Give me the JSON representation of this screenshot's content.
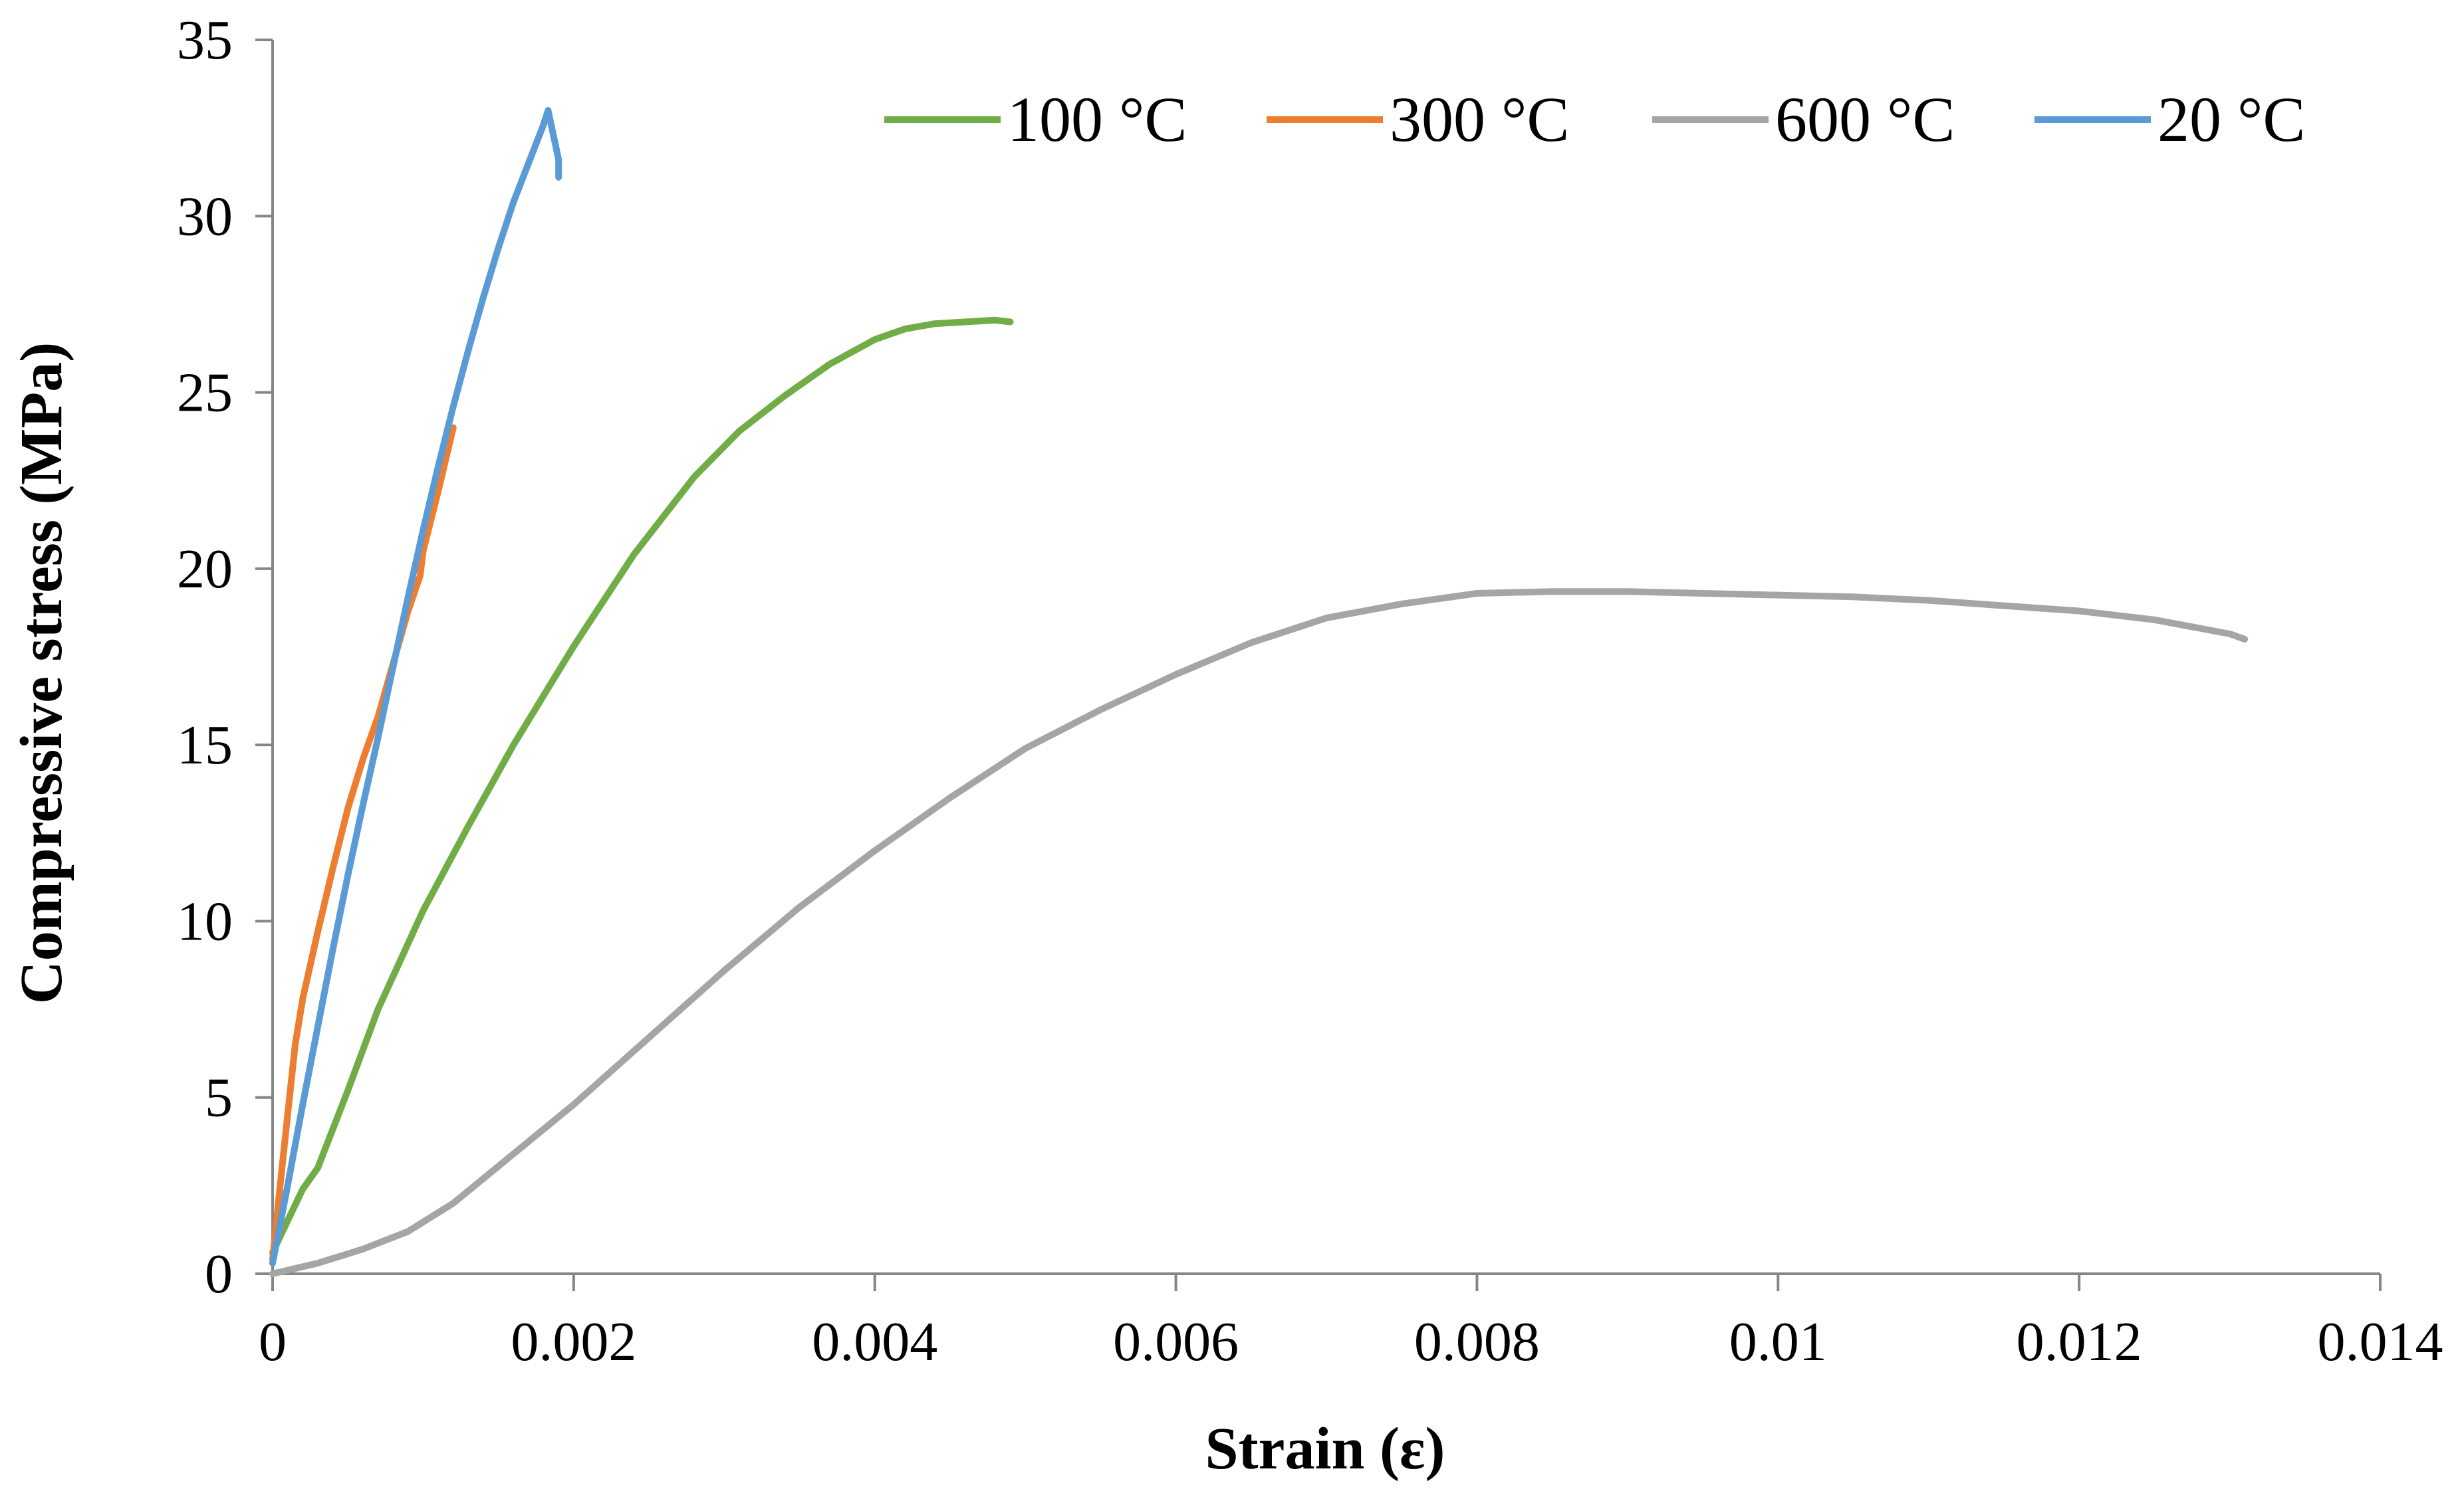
{
  "chart_data": {
    "type": "line",
    "title": "",
    "xlabel": "Strain (ε)",
    "ylabel": "Compressive stress (MPa)",
    "xlim": [
      0,
      0.014
    ],
    "ylim": [
      0,
      35
    ],
    "xticks": [
      0,
      0.002,
      0.004,
      0.006,
      0.008,
      0.01,
      0.012,
      0.014
    ],
    "xtick_labels": [
      "0",
      "0.002",
      "0.004",
      "0.006",
      "0.008",
      "0.01",
      "0.012",
      "0.014"
    ],
    "yticks": [
      0,
      5,
      10,
      15,
      20,
      25,
      30,
      35
    ],
    "ytick_labels": [
      "0",
      "5",
      "10",
      "15",
      "20",
      "25",
      "30",
      "35"
    ],
    "grid": false,
    "legend_position": "top-right",
    "series": [
      {
        "name": "100 °C",
        "color": "#70ad47",
        "x": [
          0,
          0.0001,
          0.0002,
          0.0003,
          0.0005,
          0.0007,
          0.001,
          0.0013,
          0.0016,
          0.002,
          0.0024,
          0.0028,
          0.0031,
          0.0034,
          0.0037,
          0.004,
          0.0042,
          0.0044,
          0.0046,
          0.0048,
          0.0049
        ],
        "y": [
          0.6,
          1.5,
          2.4,
          3.0,
          5.2,
          7.5,
          10.3,
          12.7,
          15.0,
          17.8,
          20.4,
          22.6,
          23.9,
          24.9,
          25.8,
          26.5,
          26.8,
          26.95,
          27.0,
          27.05,
          27.0
        ]
      },
      {
        "name": "300 °C",
        "color": "#ed7d31",
        "x": [
          0,
          5e-05,
          0.0001,
          0.00015,
          0.0002,
          0.0003,
          0.0004,
          0.0005,
          0.0006,
          0.0007,
          0.0008,
          0.0009,
          0.00098,
          0.001,
          0.0011,
          0.0012
        ],
        "y": [
          0.4,
          2.5,
          4.5,
          6.5,
          7.8,
          9.7,
          11.5,
          13.2,
          14.6,
          15.8,
          17.3,
          18.8,
          19.8,
          20.5,
          22.2,
          24.0
        ]
      },
      {
        "name": "600 °C",
        "color": "#a5a5a5",
        "x": [
          0,
          0.0003,
          0.0006,
          0.0009,
          0.0012,
          0.0016,
          0.002,
          0.0025,
          0.003,
          0.0035,
          0.004,
          0.0045,
          0.005,
          0.0055,
          0.006,
          0.0065,
          0.007,
          0.0075,
          0.008,
          0.0085,
          0.009,
          0.0095,
          0.01,
          0.0105,
          0.011,
          0.0115,
          0.012,
          0.0125,
          0.013,
          0.0131
        ],
        "y": [
          0,
          0.3,
          0.7,
          1.2,
          2.0,
          3.4,
          4.8,
          6.7,
          8.6,
          10.4,
          12.0,
          13.5,
          14.9,
          16.0,
          17.0,
          17.9,
          18.6,
          19.0,
          19.3,
          19.35,
          19.35,
          19.3,
          19.25,
          19.2,
          19.1,
          18.95,
          18.8,
          18.55,
          18.15,
          18.0
        ]
      },
      {
        "name": "20 °C",
        "color": "#5b9bd5",
        "x": [
          0,
          0.0001,
          0.0002,
          0.0003,
          0.0004,
          0.0005,
          0.0006,
          0.0007,
          0.0008,
          0.0009,
          0.001,
          0.0011,
          0.0012,
          0.0013,
          0.0014,
          0.0015,
          0.0016,
          0.0017,
          0.0018,
          0.00183,
          0.00185,
          0.00188,
          0.0019,
          0.0019
        ],
        "y": [
          0.3,
          2.5,
          4.8,
          7.0,
          9.2,
          11.3,
          13.3,
          15.2,
          17.2,
          19.2,
          21.1,
          22.9,
          24.6,
          26.2,
          27.7,
          29.1,
          30.4,
          31.5,
          32.6,
          33.0,
          32.6,
          32.0,
          31.6,
          31.1
        ]
      }
    ]
  }
}
